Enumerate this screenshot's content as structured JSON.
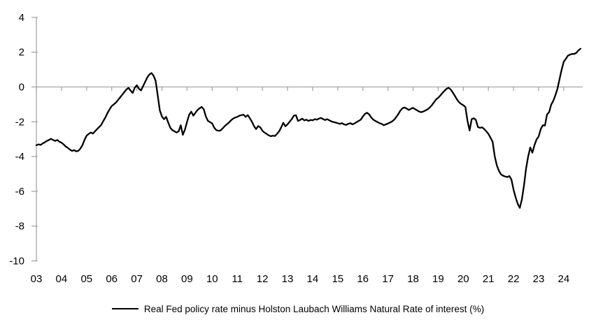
{
  "chart_data": {
    "type": "line",
    "title": "",
    "legend": "Real Fed policy rate minus Holston Laubach Williams Natural Rate of interest (%)",
    "legend_position": "bottom-center",
    "series_color": "#000000",
    "axis_color": "#a6a6a6",
    "background_color": "#ffffff",
    "grid": "off",
    "zero_axis_line": true,
    "x_frequency": "monthly",
    "x_start": "2003-01",
    "x_end": "2024-09",
    "x_tick_labels": [
      "03",
      "04",
      "05",
      "06",
      "07",
      "08",
      "09",
      "10",
      "11",
      "12",
      "13",
      "14",
      "15",
      "16",
      "17",
      "18",
      "19",
      "20",
      "21",
      "22",
      "23",
      "24"
    ],
    "y_ticks": [
      4,
      2,
      0,
      -2,
      -4,
      -6,
      -8,
      -10
    ],
    "ylim": [
      -10,
      4
    ],
    "series": [
      {
        "name": "Real Fed policy rate minus Holston Laubach Williams Natural Rate of interest (%)",
        "values": [
          -3.35,
          -3.3,
          -3.33,
          -3.25,
          -3.18,
          -3.1,
          -3.05,
          -2.98,
          -3.05,
          -3.1,
          -3.05,
          -3.15,
          -3.2,
          -3.3,
          -3.42,
          -3.5,
          -3.6,
          -3.68,
          -3.63,
          -3.7,
          -3.68,
          -3.55,
          -3.35,
          -3.05,
          -2.8,
          -2.7,
          -2.62,
          -2.68,
          -2.55,
          -2.42,
          -2.3,
          -2.18,
          -1.95,
          -1.75,
          -1.5,
          -1.28,
          -1.1,
          -1.0,
          -0.9,
          -0.75,
          -0.6,
          -0.45,
          -0.3,
          -0.15,
          -0.05,
          -0.2,
          -0.35,
          -0.05,
          0.1,
          -0.1,
          -0.2,
          0.05,
          0.3,
          0.55,
          0.72,
          0.8,
          0.65,
          0.35,
          -0.5,
          -1.35,
          -1.7,
          -1.85,
          -1.72,
          -2.05,
          -2.35,
          -2.48,
          -2.55,
          -2.62,
          -2.55,
          -2.2,
          -2.75,
          -2.45,
          -2.0,
          -1.6,
          -1.42,
          -1.65,
          -1.48,
          -1.32,
          -1.22,
          -1.15,
          -1.28,
          -1.7,
          -1.95,
          -2.02,
          -2.1,
          -2.35,
          -2.48,
          -2.52,
          -2.5,
          -2.38,
          -2.25,
          -2.15,
          -2.05,
          -1.92,
          -1.82,
          -1.76,
          -1.72,
          -1.65,
          -1.62,
          -1.6,
          -1.72,
          -1.62,
          -1.8,
          -2.0,
          -2.25,
          -2.42,
          -2.25,
          -2.32,
          -2.52,
          -2.62,
          -2.7,
          -2.78,
          -2.83,
          -2.8,
          -2.82,
          -2.7,
          -2.55,
          -2.32,
          -2.06,
          -2.26,
          -2.15,
          -2.0,
          -1.85,
          -1.65,
          -1.62,
          -1.95,
          -1.9,
          -1.82,
          -1.92,
          -1.88,
          -1.95,
          -1.9,
          -1.92,
          -1.85,
          -1.88,
          -1.82,
          -1.78,
          -1.85,
          -1.9,
          -1.85,
          -1.92,
          -1.98,
          -2.02,
          -2.05,
          -2.08,
          -2.12,
          -2.08,
          -2.15,
          -2.18,
          -2.12,
          -2.08,
          -2.15,
          -2.1,
          -2.02,
          -1.95,
          -1.88,
          -1.7,
          -1.55,
          -1.48,
          -1.58,
          -1.75,
          -1.88,
          -1.95,
          -2.02,
          -2.08,
          -2.12,
          -2.2,
          -2.15,
          -2.1,
          -2.05,
          -1.98,
          -1.88,
          -1.72,
          -1.55,
          -1.35,
          -1.22,
          -1.18,
          -1.25,
          -1.32,
          -1.25,
          -1.2,
          -1.28,
          -1.35,
          -1.42,
          -1.45,
          -1.4,
          -1.35,
          -1.28,
          -1.18,
          -1.05,
          -0.88,
          -0.72,
          -0.62,
          -0.5,
          -0.35,
          -0.22,
          -0.1,
          -0.05,
          -0.15,
          -0.32,
          -0.52,
          -0.72,
          -0.88,
          -0.98,
          -1.05,
          -1.15,
          -1.95,
          -2.5,
          -1.85,
          -1.8,
          -1.9,
          -2.3,
          -2.35,
          -2.32,
          -2.42,
          -2.55,
          -2.7,
          -2.92,
          -3.15,
          -3.98,
          -4.5,
          -4.82,
          -5.02,
          -5.1,
          -5.15,
          -5.18,
          -5.12,
          -5.32,
          -5.9,
          -6.35,
          -6.72,
          -6.95,
          -6.45,
          -5.65,
          -4.7,
          -4.0,
          -3.48,
          -3.78,
          -3.35,
          -3.02,
          -2.85,
          -2.42,
          -2.2,
          -2.22,
          -1.58,
          -1.45,
          -1.02,
          -0.8,
          -0.48,
          -0.1,
          0.45,
          1.0,
          1.45,
          1.62,
          1.8,
          1.86,
          1.9,
          1.9,
          1.96,
          2.1,
          2.2
        ]
      }
    ]
  }
}
